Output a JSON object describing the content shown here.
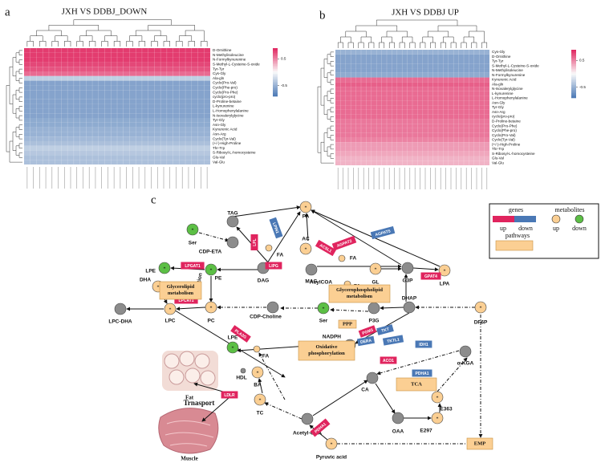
{
  "panel_labels": {
    "a": "a",
    "b": "b",
    "c": "c"
  },
  "heatmap_a": {
    "title": "JXH VS DDBJ_DOWN",
    "rows": [
      "D-Ornithine",
      "N-Methylisoleucine",
      "N-Formylkynurenine",
      "S-Methyl-L-Cysteine-S-oxide",
      "Tyr-Tyr",
      "Cys-Gly",
      "Ala-gln",
      "Cyclo(Pro-Val)",
      "Cyclo(Phe-pro)",
      "Cyclo(Pro-Phe)",
      "cyclo(pro-pro)",
      "D-Proline-betaine",
      "L-kynurenine",
      "L-Homophenylalanine",
      "N-Isovalerylglycine",
      "Tyr-Gly",
      "Asn-Gly",
      "Kynurenic Acid",
      "Asn-Arg",
      "Cyclo(Tyr-Val)",
      "(+/-)-High-Proline",
      "Thr-Trp",
      "S-Ribosyl-L-homocysteine",
      "Glu-Val",
      "Val-Glu"
    ],
    "row_levels": [
      0.8,
      0.8,
      0.8,
      0.75,
      0.7,
      0.6,
      -0.3,
      -0.6,
      -0.6,
      -0.6,
      -0.6,
      -0.6,
      -0.6,
      -0.6,
      -0.6,
      -0.55,
      -0.55,
      -0.5,
      -0.5,
      -0.45,
      -0.4,
      -0.3,
      -0.35,
      -0.4,
      -0.4
    ],
    "colorbar_lim": [
      -0.9,
      0.9
    ],
    "colorbar_ticks": [
      0.5,
      -0.5
    ]
  },
  "heatmap_b": {
    "title": "JXH VS DDBJ UP",
    "rows": [
      "Cys-Gly",
      "D-Ornithine",
      "Tyr-Tyr",
      "S-Methyl-L-Cysteine-S-oxide",
      "N-Methylisoleucine",
      "N-Formylkynurenine",
      "Kynurenic Acid",
      "Ala-gln",
      "N-Isovalerylglycine",
      "L-kynurenine",
      "L-Homophenylalanine",
      "Asn-Gly",
      "Tyr-Gly",
      "Asn-Arg",
      "cyclo(pro-pro)",
      "D-Proline-betaine",
      "Cyclo(Pro-Phe)",
      "Cyclo(Phe-pro)",
      "Cyclo(Pro-Val)",
      "Cyclo(Tyr-Val)",
      "(+/-)-High-Proline",
      "Thr-Trp",
      "S-Ribosyl-L-homocysteine",
      "Glu-Val",
      "Val-Glu"
    ],
    "row_levels": [
      -0.5,
      -0.6,
      -0.6,
      -0.6,
      -0.6,
      -0.55,
      0.6,
      0.65,
      0.6,
      0.6,
      0.6,
      0.6,
      0.6,
      0.6,
      0.6,
      0.55,
      0.55,
      0.55,
      0.55,
      0.5,
      0.4,
      0.4,
      0.35,
      0.3,
      0.3
    ],
    "colorbar_lim": [
      -0.9,
      0.9
    ],
    "colorbar_ticks": [
      0.5,
      -0.5
    ]
  },
  "pathway": {
    "nodes": [
      {
        "label": "PA",
        "state": "up"
      },
      {
        "label": "TAG",
        "state": "none"
      },
      {
        "label": "Ser",
        "state": "down"
      },
      {
        "label": "CDP-ETA",
        "state": "none"
      },
      {
        "label": "AC",
        "state": "up"
      },
      {
        "label": "LPE",
        "state": "down"
      },
      {
        "label": "PE",
        "state": "down"
      },
      {
        "label": "DAG",
        "state": "none"
      },
      {
        "label": "MAG",
        "state": "none"
      },
      {
        "label": "GL",
        "state": "up"
      },
      {
        "label": "G3P",
        "state": "none"
      },
      {
        "label": "LPA",
        "state": "up"
      },
      {
        "label": "DHA",
        "state": "up"
      },
      {
        "label": "LPC",
        "state": "up"
      },
      {
        "label": "LPC-DHA",
        "state": "none"
      },
      {
        "label": "PC",
        "state": "up"
      },
      {
        "label": "CDP-Choline",
        "state": "none"
      },
      {
        "label": "Ser",
        "state": "down"
      },
      {
        "label": "P3G",
        "state": "none"
      },
      {
        "label": "DHAP",
        "state": "none"
      },
      {
        "label": "DF6P",
        "state": "up"
      },
      {
        "label": "LPE",
        "state": "down"
      },
      {
        "label": "BA",
        "state": "up"
      },
      {
        "label": "NADPH",
        "state": "none"
      },
      {
        "label": "α-KGA",
        "state": "none"
      },
      {
        "label": "CA",
        "state": "none"
      },
      {
        "label": "TC",
        "state": "up"
      },
      {
        "label": "E363",
        "state": "up"
      },
      {
        "label": "OAA",
        "state": "none"
      },
      {
        "label": "E297",
        "state": "up"
      },
      {
        "label": "Acetyl-COA",
        "state": "none"
      },
      {
        "label": "Pyruvic acid",
        "state": "up"
      },
      {
        "label": "FA",
        "state": "up"
      },
      {
        "label": "FA",
        "state": "up"
      },
      {
        "label": "FA",
        "state": "up"
      },
      {
        "label": "FA",
        "state": "up"
      },
      {
        "label": "HDL",
        "state": "none"
      }
    ],
    "genes": [
      {
        "label": "LPL",
        "state": "up"
      },
      {
        "label": "LPIN1",
        "state": "down"
      },
      {
        "label": "ACSL1",
        "state": "up"
      },
      {
        "label": "AGPAT2",
        "state": "up"
      },
      {
        "label": "AGPAT5",
        "state": "down"
      },
      {
        "label": "LIPG",
        "state": "up"
      },
      {
        "label": "LPGAT1",
        "state": "up"
      },
      {
        "label": "GPAT4",
        "state": "up"
      },
      {
        "label": "LPCAT4",
        "state": "up"
      },
      {
        "label": "LPCAT1",
        "state": "up"
      },
      {
        "label": "PLA2G",
        "state": "up"
      },
      {
        "label": "PGM3",
        "state": "up"
      },
      {
        "label": "TKT",
        "state": "down"
      },
      {
        "label": "TKTL1",
        "state": "down"
      },
      {
        "label": "DERA",
        "state": "down"
      },
      {
        "label": "IDH1",
        "state": "down"
      },
      {
        "label": "ACO1",
        "state": "up"
      },
      {
        "label": "PDHA1",
        "state": "down"
      },
      {
        "label": "PDHA1",
        "state": "up"
      },
      {
        "label": "LDLR",
        "state": "up"
      }
    ],
    "pathways": [
      "PPP",
      "Glycerolipid metabolism",
      "Glycerophospholipid metabolism",
      "Oxidative phosphorylation",
      "TCA",
      "EMP"
    ],
    "notes": {
      "acyl": "AcylCOA",
      "methylation": "Methylation",
      "fat": "Fat",
      "muscle": "Muscle",
      "transport": "Trnasport"
    },
    "legend": {
      "genes": "genes",
      "metabolites": "metabolites",
      "gene_up": "up",
      "gene_down": "down",
      "met_up": "up",
      "met_down": "down",
      "pathways": "pathways"
    }
  }
}
